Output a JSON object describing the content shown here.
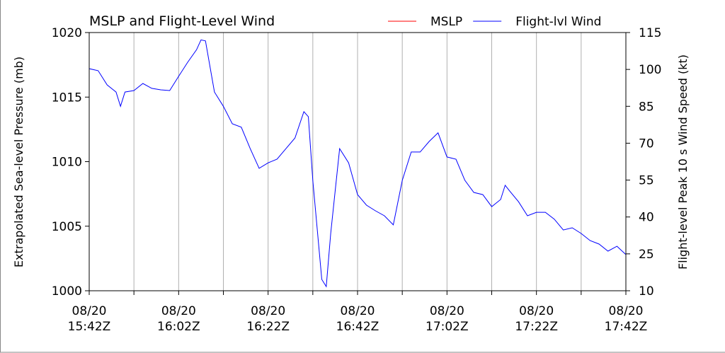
{
  "chart_data": {
    "type": "line",
    "title": "MSLP and Flight-Level Wind",
    "ylabel": "Extrapolated Sea-level Pressure (mb)",
    "y2label": "Flight-level Peak 10 s Wind Speed (kt)",
    "x": [
      "08/20 15:42Z",
      "08/20 15:44Z",
      "08/20 15:46Z",
      "08/20 15:48Z",
      "08/20 15:49Z",
      "08/20 15:50Z",
      "08/20 15:52Z",
      "08/20 15:54Z",
      "08/20 15:56Z",
      "08/20 15:58Z",
      "08/20 16:00Z",
      "08/20 16:02Z",
      "08/20 16:04Z",
      "08/20 16:06Z",
      "08/20 16:07Z",
      "08/20 16:08Z",
      "08/20 16:10Z",
      "08/20 16:12Z",
      "08/20 16:14Z",
      "08/20 16:16Z",
      "08/20 16:18Z",
      "08/20 16:20Z",
      "08/20 16:22Z",
      "08/20 16:24Z",
      "08/20 16:26Z",
      "08/20 16:28Z",
      "08/20 16:30Z",
      "08/20 16:31Z",
      "08/20 16:32Z",
      "08/20 16:34Z",
      "08/20 16:35Z",
      "08/20 16:36Z",
      "08/20 16:37Z",
      "08/20 16:38Z",
      "08/20 16:40Z",
      "08/20 16:42Z",
      "08/20 16:44Z",
      "08/20 16:46Z",
      "08/20 16:48Z",
      "08/20 16:50Z",
      "08/20 16:52Z",
      "08/20 16:54Z",
      "08/20 16:56Z",
      "08/20 16:58Z",
      "08/20 17:00Z",
      "08/20 17:02Z",
      "08/20 17:04Z",
      "08/20 17:06Z",
      "08/20 17:08Z",
      "08/20 17:10Z",
      "08/20 17:12Z",
      "08/20 17:14Z",
      "08/20 17:15Z",
      "08/20 17:16Z",
      "08/20 17:18Z",
      "08/20 17:20Z",
      "08/20 17:22Z",
      "08/20 17:24Z",
      "08/20 17:26Z",
      "08/20 17:28Z",
      "08/20 17:30Z",
      "08/20 17:32Z",
      "08/20 17:34Z",
      "08/20 17:36Z",
      "08/20 17:38Z",
      "08/20 17:40Z",
      "08/20 17:42Z"
    ],
    "series": [
      {
        "name": "MSLP",
        "color": "#ff0000",
        "axis": "y",
        "values": [
          null,
          null,
          null,
          null,
          null,
          null,
          null,
          null,
          null,
          null,
          null,
          null,
          null,
          null,
          null,
          null,
          null,
          null,
          null,
          null,
          null,
          null,
          null,
          null,
          null,
          null,
          null,
          null,
          null,
          null,
          null,
          null,
          null,
          null,
          null,
          null,
          null,
          null,
          null,
          null,
          null,
          null,
          null,
          null,
          null,
          null,
          null,
          null,
          null,
          null,
          null,
          null,
          null,
          null,
          null,
          null,
          null,
          null,
          null,
          null,
          null,
          null,
          null,
          null,
          null,
          null,
          null
        ]
      },
      {
        "name": "Flight-lvl Wind",
        "color": "#0000ff",
        "axis": "y2",
        "values": [
          100.3,
          99.5,
          93.7,
          90.8,
          85,
          90.8,
          91.4,
          94.3,
          92.3,
          91.7,
          91.4,
          97.2,
          102.9,
          108,
          112,
          111.6,
          90.8,
          85,
          77.9,
          76.5,
          67.8,
          59.8,
          62,
          63.5,
          67.8,
          72.1,
          82.8,
          80.8,
          54.9,
          14.6,
          11.7,
          33.3,
          50.6,
          67.8,
          62,
          49.1,
          44.8,
          42.5,
          40.5,
          36.8,
          54.9,
          66.4,
          66.4,
          70.7,
          74.2,
          64.4,
          63.5,
          54.9,
          50,
          49.1,
          44.2,
          47.1,
          52.9,
          50.6,
          46.2,
          40.5,
          41.9,
          41.9,
          39.1,
          34.7,
          35.6,
          33.3,
          30.4,
          29,
          26.1,
          28.1,
          24.7
        ]
      }
    ],
    "xlim": [
      "08/20 15:42Z",
      "08/20 17:42Z"
    ],
    "xticks": [
      {
        "value": "08/20 15:42Z",
        "label": "08/20\n15:42Z"
      },
      {
        "value": "08/20 16:02Z",
        "label": "08/20\n16:02Z"
      },
      {
        "value": "08/20 16:22Z",
        "label": "08/20\n16:22Z"
      },
      {
        "value": "08/20 16:42Z",
        "label": "08/20\n16:42Z"
      },
      {
        "value": "08/20 17:02Z",
        "label": "08/20\n17:02Z"
      },
      {
        "value": "08/20 17:22Z",
        "label": "08/20\n17:22Z"
      },
      {
        "value": "08/20 17:42Z",
        "label": "08/20\n17:42Z"
      }
    ],
    "xminor_ticks": [
      "08/20 15:52Z",
      "08/20 16:12Z",
      "08/20 16:32Z",
      "08/20 16:52Z",
      "08/20 17:12Z",
      "08/20 17:32Z"
    ],
    "ylim": [
      1000,
      1020
    ],
    "yticks": [
      1000,
      1005,
      1010,
      1015,
      1020
    ],
    "y2lim": [
      10,
      115
    ],
    "y2ticks": [
      10,
      25,
      40,
      55,
      70,
      85,
      100,
      115
    ],
    "grid": "x",
    "legend": "upper right"
  }
}
